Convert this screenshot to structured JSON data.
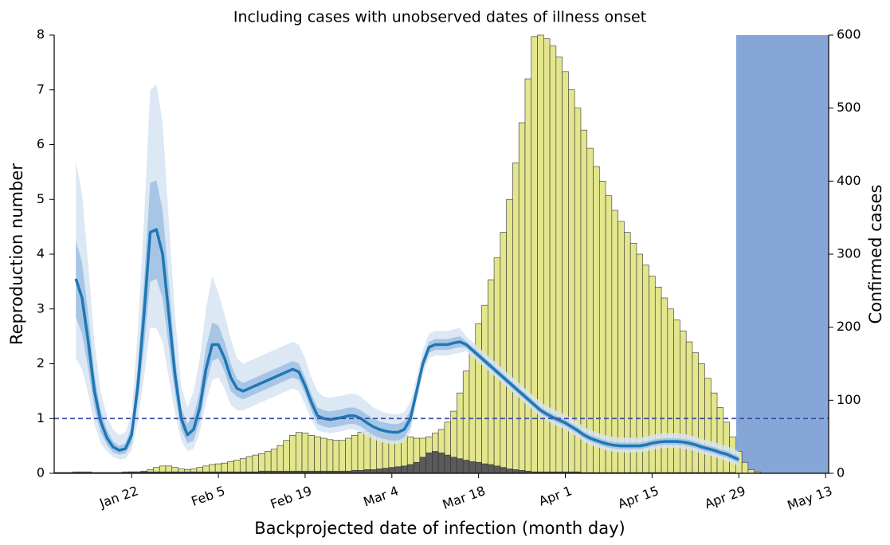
{
  "chart_data": {
    "type": "combo",
    "title": "Including cases with unobserved dates of illness onset",
    "x_label": "Backprojected date of infection (month day)",
    "y_label": "Reproduction number",
    "y2_label": "Confirmed cases",
    "categories": [
      null,
      null,
      null,
      null,
      null,
      null,
      null,
      null,
      null,
      null,
      null,
      null,
      "Jan 22",
      null,
      null,
      null,
      null,
      null,
      null,
      null,
      null,
      null,
      null,
      null,
      null,
      null,
      "Feb 5",
      null,
      null,
      null,
      null,
      null,
      null,
      null,
      null,
      null,
      null,
      null,
      null,
      null,
      "Feb 19",
      null,
      null,
      null,
      null,
      null,
      null,
      null,
      null,
      null,
      null,
      null,
      null,
      null,
      "Mar 4",
      null,
      null,
      null,
      null,
      null,
      null,
      null,
      null,
      null,
      null,
      null,
      null,
      null,
      "Mar 18",
      null,
      null,
      null,
      null,
      null,
      null,
      null,
      null,
      null,
      null,
      null,
      null,
      null,
      "Apr 1",
      null,
      null,
      null,
      null,
      null,
      null,
      null,
      null,
      null,
      null,
      null,
      null,
      null,
      "Apr 15",
      null,
      null,
      null,
      null,
      null,
      null,
      null,
      null,
      null,
      null,
      null,
      null,
      null,
      "Apr 29",
      null,
      null,
      null,
      null,
      null,
      null,
      null,
      null,
      null,
      null,
      null,
      null,
      null,
      "May 13"
    ],
    "ylim": [
      0,
      8
    ],
    "yticks": [
      0,
      1,
      2,
      3,
      4,
      5,
      6,
      7,
      8
    ],
    "y_color": "#1f77b4",
    "y2lim": [
      0,
      600
    ],
    "y2ticks": [
      0,
      100,
      200,
      300,
      400,
      500,
      600
    ],
    "reference_line": 1,
    "reference_color": "#3f4fa8",
    "series": [
      {
        "type": "bar",
        "axis": "y2",
        "color": "#e3e68c",
        "values": [
          1,
          1,
          1,
          2,
          2,
          2,
          1,
          1,
          1,
          1,
          1,
          2,
          2,
          2,
          3,
          5,
          8,
          10,
          10,
          8,
          6,
          5,
          6,
          8,
          10,
          12,
          13,
          14,
          16,
          18,
          20,
          23,
          25,
          27,
          30,
          33,
          38,
          45,
          52,
          56,
          55,
          52,
          50,
          48,
          46,
          45,
          45,
          48,
          52,
          56,
          57,
          58,
          58,
          58,
          57,
          55,
          52,
          50,
          48,
          48,
          50,
          55,
          60,
          70,
          85,
          110,
          140,
          170,
          205,
          230,
          265,
          295,
          330,
          375,
          425,
          480,
          540,
          598,
          600,
          595,
          585,
          570,
          550,
          525,
          500,
          470,
          445,
          420,
          400,
          380,
          360,
          345,
          330,
          315,
          300,
          285,
          270,
          255,
          240,
          225,
          210,
          195,
          180,
          165,
          150,
          130,
          110,
          90,
          70,
          50,
          30,
          15,
          5,
          2,
          0,
          0,
          0,
          0,
          0,
          0,
          0,
          0,
          0,
          0,
          0
        ]
      },
      {
        "type": "bar",
        "axis": "y2",
        "color": "#5a5a5a",
        "values": [
          1,
          1,
          1,
          1,
          1,
          1,
          1,
          1,
          1,
          1,
          1,
          1,
          2,
          2,
          2,
          2,
          2,
          2,
          2,
          2,
          2,
          2,
          2,
          2,
          2,
          2,
          2,
          2,
          2,
          2,
          2,
          2,
          2,
          3,
          3,
          3,
          3,
          3,
          3,
          3,
          3,
          3,
          3,
          3,
          3,
          3,
          3,
          3,
          4,
          4,
          5,
          5,
          6,
          7,
          8,
          9,
          10,
          12,
          15,
          22,
          28,
          30,
          28,
          25,
          22,
          20,
          18,
          16,
          15,
          13,
          12,
          10,
          8,
          6,
          5,
          4,
          3,
          2,
          2,
          2,
          2,
          2,
          2,
          2,
          2,
          1,
          1,
          1,
          1,
          1,
          1,
          1,
          1,
          1,
          1,
          1,
          1,
          1,
          1,
          1,
          1,
          1,
          1,
          1,
          1,
          1,
          1,
          1,
          1,
          1,
          0,
          0,
          0,
          0,
          0,
          0,
          0,
          0,
          0,
          0,
          0,
          0,
          0,
          0,
          0
        ]
      },
      {
        "type": "line",
        "axis": "y",
        "color": "#1f77b4",
        "values": [
          null,
          null,
          null,
          3.55,
          3.2,
          2.4,
          1.5,
          0.95,
          0.65,
          0.48,
          0.42,
          0.45,
          0.7,
          1.6,
          2.9,
          4.4,
          4.45,
          4.0,
          2.9,
          1.8,
          1.0,
          0.7,
          0.8,
          1.2,
          1.9,
          2.35,
          2.35,
          2.1,
          1.75,
          1.55,
          1.5,
          1.55,
          1.6,
          1.65,
          1.7,
          1.75,
          1.8,
          1.85,
          1.9,
          1.85,
          1.6,
          1.3,
          1.05,
          1.0,
          0.98,
          1.0,
          1.02,
          1.05,
          1.05,
          1.0,
          0.92,
          0.85,
          0.8,
          0.77,
          0.75,
          0.75,
          0.8,
          1.0,
          1.5,
          2.0,
          2.3,
          2.35,
          2.35,
          2.35,
          2.38,
          2.4,
          2.35,
          2.25,
          2.15,
          2.05,
          1.95,
          1.85,
          1.75,
          1.65,
          1.55,
          1.45,
          1.35,
          1.25,
          1.15,
          1.08,
          1.02,
          0.97,
          0.92,
          0.85,
          0.78,
          0.7,
          0.64,
          0.6,
          0.56,
          0.53,
          0.51,
          0.5,
          0.5,
          0.5,
          0.5,
          0.52,
          0.55,
          0.57,
          0.58,
          0.58,
          0.58,
          0.57,
          0.55,
          0.52,
          0.48,
          0.45,
          0.42,
          0.38,
          0.35,
          0.3,
          0.25,
          null,
          null,
          null,
          null,
          null,
          null,
          null,
          null,
          null,
          null,
          null,
          null,
          null,
          null
        ]
      }
    ],
    "bands": [
      {
        "color": "#d6e4f2",
        "upper": [
          null,
          null,
          null,
          5.7,
          5.1,
          3.8,
          2.4,
          1.5,
          1.05,
          0.8,
          0.7,
          0.75,
          1.1,
          2.6,
          4.6,
          7.0,
          7.1,
          6.4,
          4.6,
          2.9,
          1.6,
          1.2,
          1.5,
          2.1,
          3.0,
          3.6,
          3.3,
          2.9,
          2.45,
          2.1,
          2.0,
          2.05,
          2.1,
          2.15,
          2.2,
          2.25,
          2.3,
          2.35,
          2.4,
          2.35,
          2.1,
          1.75,
          1.5,
          1.4,
          1.38,
          1.4,
          1.42,
          1.45,
          1.45,
          1.4,
          1.3,
          1.2,
          1.15,
          1.1,
          1.08,
          1.08,
          1.12,
          1.3,
          1.75,
          2.25,
          2.55,
          2.6,
          2.6,
          2.6,
          2.63,
          2.65,
          2.5,
          2.4,
          2.3,
          2.2,
          2.1,
          2.0,
          1.9,
          1.8,
          1.7,
          1.6,
          1.5,
          1.4,
          1.3,
          1.23,
          1.17,
          1.12,
          1.07,
          1.0,
          0.93,
          0.85,
          0.79,
          0.75,
          0.71,
          0.68,
          0.66,
          0.65,
          0.65,
          0.65,
          0.65,
          0.67,
          0.7,
          0.72,
          0.73,
          0.73,
          0.73,
          0.72,
          0.7,
          0.67,
          0.63,
          0.6,
          0.57,
          0.53,
          0.5,
          0.45,
          0.4,
          null,
          null,
          null,
          null,
          null,
          null,
          null,
          null,
          null,
          null,
          null,
          null,
          null,
          null
        ],
        "lower": [
          null,
          null,
          null,
          2.1,
          1.9,
          1.45,
          0.9,
          0.55,
          0.4,
          0.3,
          0.25,
          0.27,
          0.42,
          0.95,
          1.75,
          2.65,
          2.65,
          2.4,
          1.75,
          1.1,
          0.6,
          0.4,
          0.45,
          0.75,
          1.3,
          1.7,
          1.75,
          1.55,
          1.25,
          1.15,
          1.15,
          1.2,
          1.25,
          1.3,
          1.35,
          1.4,
          1.45,
          1.5,
          1.55,
          1.5,
          1.25,
          0.98,
          0.78,
          0.75,
          0.73,
          0.75,
          0.77,
          0.8,
          0.8,
          0.75,
          0.68,
          0.62,
          0.58,
          0.55,
          0.53,
          0.53,
          0.57,
          0.75,
          1.3,
          1.8,
          2.1,
          2.15,
          2.15,
          2.15,
          2.18,
          2.2,
          2.23,
          2.13,
          2.03,
          1.93,
          1.83,
          1.73,
          1.63,
          1.53,
          1.43,
          1.33,
          1.23,
          1.13,
          1.03,
          0.96,
          0.9,
          0.85,
          0.8,
          0.73,
          0.66,
          0.58,
          0.52,
          0.48,
          0.44,
          0.41,
          0.39,
          0.38,
          0.38,
          0.38,
          0.38,
          0.4,
          0.43,
          0.45,
          0.46,
          0.46,
          0.46,
          0.45,
          0.43,
          0.4,
          0.36,
          0.33,
          0.3,
          0.26,
          0.23,
          0.18,
          0.13,
          null,
          null,
          null,
          null,
          null,
          null,
          null,
          null,
          null,
          null,
          null,
          null,
          null,
          null
        ]
      },
      {
        "color": "#9dc0e2",
        "upper": [
          null,
          null,
          null,
          4.25,
          3.85,
          2.9,
          1.8,
          1.15,
          0.8,
          0.58,
          0.5,
          0.55,
          0.85,
          1.9,
          3.5,
          5.3,
          5.35,
          4.8,
          3.5,
          2.15,
          1.2,
          0.9,
          1.05,
          1.5,
          2.3,
          2.75,
          2.7,
          2.4,
          2.0,
          1.72,
          1.65,
          1.7,
          1.75,
          1.8,
          1.85,
          1.9,
          1.95,
          2.0,
          2.05,
          2.0,
          1.75,
          1.45,
          1.2,
          1.15,
          1.13,
          1.15,
          1.17,
          1.2,
          1.2,
          1.15,
          1.07,
          1.0,
          0.95,
          0.92,
          0.9,
          0.9,
          0.95,
          1.15,
          1.6,
          2.1,
          2.4,
          2.45,
          2.45,
          2.45,
          2.48,
          2.5,
          2.41,
          2.31,
          2.21,
          2.11,
          2.01,
          1.91,
          1.81,
          1.71,
          1.61,
          1.51,
          1.41,
          1.31,
          1.21,
          1.14,
          1.08,
          1.03,
          0.98,
          0.91,
          0.84,
          0.76,
          0.7,
          0.66,
          0.62,
          0.59,
          0.57,
          0.56,
          0.56,
          0.56,
          0.56,
          0.58,
          0.61,
          0.63,
          0.64,
          0.64,
          0.64,
          0.63,
          0.61,
          0.58,
          0.54,
          0.51,
          0.48,
          0.44,
          0.41,
          0.36,
          0.31,
          null,
          null,
          null,
          null,
          null,
          null,
          null,
          null,
          null,
          null,
          null,
          null,
          null,
          null
        ],
        "lower": [
          null,
          null,
          null,
          2.85,
          2.55,
          1.9,
          1.2,
          0.75,
          0.52,
          0.38,
          0.34,
          0.36,
          0.55,
          1.3,
          2.3,
          3.5,
          3.55,
          3.2,
          2.3,
          1.45,
          0.8,
          0.55,
          0.6,
          0.95,
          1.6,
          2.05,
          2.1,
          1.85,
          1.5,
          1.4,
          1.35,
          1.4,
          1.45,
          1.5,
          1.55,
          1.6,
          1.65,
          1.7,
          1.75,
          1.7,
          1.45,
          1.15,
          0.9,
          0.85,
          0.83,
          0.85,
          0.87,
          0.9,
          0.9,
          0.85,
          0.77,
          0.7,
          0.65,
          0.62,
          0.6,
          0.6,
          0.65,
          0.85,
          1.4,
          1.9,
          2.2,
          2.25,
          2.25,
          2.25,
          2.28,
          2.3,
          2.29,
          2.19,
          2.09,
          1.99,
          1.89,
          1.79,
          1.69,
          1.59,
          1.49,
          1.39,
          1.29,
          1.19,
          1.09,
          1.02,
          0.96,
          0.91,
          0.86,
          0.79,
          0.72,
          0.64,
          0.58,
          0.54,
          0.5,
          0.47,
          0.45,
          0.44,
          0.44,
          0.44,
          0.44,
          0.46,
          0.49,
          0.51,
          0.52,
          0.52,
          0.52,
          0.51,
          0.49,
          0.46,
          0.42,
          0.39,
          0.36,
          0.32,
          0.29,
          0.24,
          0.19,
          null,
          null,
          null,
          null,
          null,
          null,
          null,
          null,
          null,
          null,
          null,
          null,
          null,
          null
        ]
      }
    ]
  }
}
